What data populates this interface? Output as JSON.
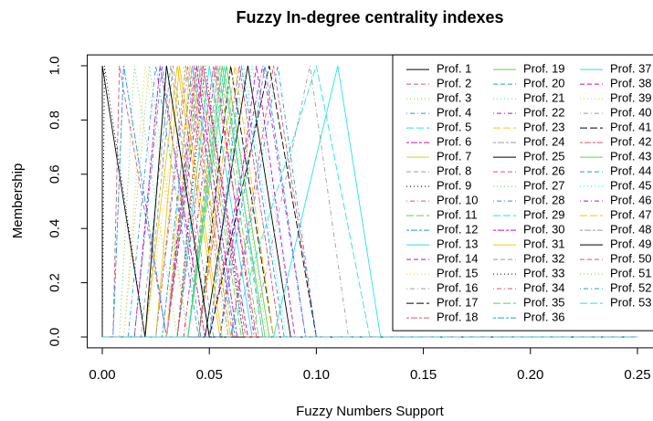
{
  "chart_data": {
    "type": "line",
    "title": "Fuzzy In-degree centrality indexes",
    "x_label": "Fuzzy Numbers Support",
    "y_label": "Membership",
    "xlim": [
      -0.007,
      0.26
    ],
    "ylim": [
      -0.04,
      1.04
    ],
    "xticks": [
      {
        "value": 0,
        "label": "0.00"
      },
      {
        "value": 0.05,
        "label": "0.05"
      },
      {
        "value": 0.1,
        "label": "0.10"
      },
      {
        "value": 0.15,
        "label": "0.15"
      },
      {
        "value": 0.2,
        "label": "0.20"
      },
      {
        "value": 0.25,
        "label": "0.25"
      }
    ],
    "yticks": [
      {
        "value": 0,
        "label": "0.0"
      },
      {
        "value": 0.2,
        "label": "0.2"
      },
      {
        "value": 0.4,
        "label": "0.4"
      },
      {
        "value": 0.6,
        "label": "0.6"
      },
      {
        "value": 0.8,
        "label": "0.8"
      },
      {
        "value": 1,
        "label": "1.0"
      }
    ],
    "legend": "top-right",
    "series": [
      {
        "name": "Prof. 1",
        "color": "#000000",
        "linetype": "solid",
        "x": [
          0,
          0,
          0,
          0.02,
          0.25
        ],
        "values": [
          0,
          0,
          1,
          0,
          0
        ]
      },
      {
        "name": "Prof. 2",
        "color": "#DF536B",
        "linetype": "dashed",
        "x": [
          0,
          0.005,
          0.008,
          0.03,
          0.25
        ],
        "values": [
          0,
          0,
          1,
          0,
          0
        ]
      },
      {
        "name": "Prof. 3",
        "color": "#61D04F",
        "linetype": "dotted",
        "x": [
          0,
          0.01,
          0.022,
          0.04,
          0.25
        ],
        "values": [
          0,
          0,
          1,
          0,
          0
        ]
      },
      {
        "name": "Prof. 4",
        "color": "#2297E6",
        "linetype": "dotdash",
        "x": [
          0,
          0.012,
          0.025,
          0.045,
          0.25
        ],
        "values": [
          0,
          0,
          1,
          0,
          0
        ]
      },
      {
        "name": "Prof. 5",
        "color": "#28E2E5",
        "linetype": "longdash",
        "x": [
          0,
          0.02,
          0.03,
          0.05,
          0.25
        ],
        "values": [
          0,
          0,
          1,
          0,
          0
        ]
      },
      {
        "name": "Prof. 6",
        "color": "#CD0BBC",
        "linetype": "twodash",
        "x": [
          0,
          0.015,
          0.027,
          0.048,
          0.25
        ],
        "values": [
          0,
          0,
          1,
          0,
          0
        ]
      },
      {
        "name": "Prof. 7",
        "color": "#F5C710",
        "linetype": "solid",
        "x": [
          0,
          0.02,
          0.035,
          0.055,
          0.25
        ],
        "values": [
          0,
          0,
          1,
          0,
          0
        ]
      },
      {
        "name": "Prof. 8",
        "color": "#9E9E9E",
        "linetype": "dashed",
        "x": [
          0,
          0.018,
          0.032,
          0.05,
          0.25
        ],
        "values": [
          0,
          0,
          1,
          0,
          0
        ]
      },
      {
        "name": "Prof. 9",
        "color": "#000000",
        "linetype": "dotted",
        "x": [
          0,
          0,
          0.001,
          0.02,
          0.25
        ],
        "values": [
          0,
          0,
          1,
          0,
          0
        ]
      },
      {
        "name": "Prof. 10",
        "color": "#DF536B",
        "linetype": "dotdash",
        "x": [
          0,
          0.025,
          0.04,
          0.06,
          0.25
        ],
        "values": [
          0,
          0,
          1,
          0,
          0
        ]
      },
      {
        "name": "Prof. 11",
        "color": "#61D04F",
        "linetype": "longdash",
        "x": [
          0,
          0.03,
          0.045,
          0.065,
          0.25
        ],
        "values": [
          0,
          0,
          1,
          0,
          0
        ]
      },
      {
        "name": "Prof. 12",
        "color": "#2297E6",
        "linetype": "twodash",
        "x": [
          0,
          0.028,
          0.042,
          0.062,
          0.25
        ],
        "values": [
          0,
          0,
          1,
          0,
          0
        ]
      },
      {
        "name": "Prof. 13",
        "color": "#28E2E5",
        "linetype": "solid",
        "x": [
          0,
          0.035,
          0.05,
          0.07,
          0.25
        ],
        "values": [
          0,
          0,
          1,
          0,
          0
        ]
      },
      {
        "name": "Prof. 14",
        "color": "#CD0BBC",
        "linetype": "dashed",
        "x": [
          0,
          0.03,
          0.047,
          0.068,
          0.25
        ],
        "values": [
          0,
          0,
          1,
          0,
          0
        ]
      },
      {
        "name": "Prof. 15",
        "color": "#F5C710",
        "linetype": "dotted",
        "x": [
          0,
          0.02,
          0.038,
          0.058,
          0.25
        ],
        "values": [
          0,
          0,
          1,
          0,
          0
        ]
      },
      {
        "name": "Prof. 16",
        "color": "#9E9E9E",
        "linetype": "dotdash",
        "x": [
          0,
          0.04,
          0.055,
          0.075,
          0.25
        ],
        "values": [
          0,
          0,
          1,
          0,
          0
        ]
      },
      {
        "name": "Prof. 17",
        "color": "#000000",
        "linetype": "longdash",
        "x": [
          0,
          0.045,
          0.06,
          0.08,
          0.25
        ],
        "values": [
          0,
          0,
          1,
          0,
          0
        ]
      },
      {
        "name": "Prof. 18",
        "color": "#DF536B",
        "linetype": "twodash",
        "x": [
          0,
          0.035,
          0.052,
          0.072,
          0.25
        ],
        "values": [
          0,
          0,
          1,
          0,
          0
        ]
      },
      {
        "name": "Prof. 19",
        "color": "#61D04F",
        "linetype": "solid",
        "x": [
          0,
          0.04,
          0.058,
          0.078,
          0.25
        ],
        "values": [
          0,
          0,
          1,
          0,
          0
        ]
      },
      {
        "name": "Prof. 20",
        "color": "#2297E6",
        "linetype": "dashed",
        "x": [
          0,
          0.05,
          0.065,
          0.085,
          0.25
        ],
        "values": [
          0,
          0,
          1,
          0,
          0
        ]
      },
      {
        "name": "Prof. 21",
        "color": "#28E2E5",
        "linetype": "dotted",
        "x": [
          0,
          0.055,
          0.07,
          0.09,
          0.25
        ],
        "values": [
          0,
          0,
          1,
          0,
          0
        ]
      },
      {
        "name": "Prof. 22",
        "color": "#CD0BBC",
        "linetype": "dotdash",
        "x": [
          0,
          0.05,
          0.075,
          0.095,
          0.25
        ],
        "values": [
          0,
          0,
          1,
          0,
          0
        ]
      },
      {
        "name": "Prof. 23",
        "color": "#F5C710",
        "linetype": "longdash",
        "x": [
          0,
          0.045,
          0.062,
          0.08,
          0.25
        ],
        "values": [
          0,
          0,
          1,
          0,
          0
        ]
      },
      {
        "name": "Prof. 24",
        "color": "#9E9E9E",
        "linetype": "twodash",
        "x": [
          0,
          0.03,
          0.046,
          0.066,
          0.25
        ],
        "values": [
          0,
          0,
          1,
          0,
          0
        ]
      },
      {
        "name": "Prof. 25",
        "color": "#000000",
        "linetype": "solid",
        "x": [
          0,
          0.048,
          0.068,
          0.088,
          0.25
        ],
        "values": [
          0,
          0,
          1,
          0,
          0
        ]
      },
      {
        "name": "Prof. 26",
        "color": "#DF536B",
        "linetype": "dashed",
        "x": [
          0,
          0.06,
          0.08,
          0.1,
          0.25
        ],
        "values": [
          0,
          0,
          1,
          0,
          0
        ]
      },
      {
        "name": "Prof. 27",
        "color": "#61D04F",
        "linetype": "dotted",
        "x": [
          0,
          0.008,
          0.015,
          0.035,
          0.25
        ],
        "values": [
          0,
          0,
          1,
          0,
          0
        ]
      },
      {
        "name": "Prof. 28",
        "color": "#2297E6",
        "linetype": "dotdash",
        "x": [
          0,
          0.015,
          0.028,
          0.046,
          0.25
        ],
        "values": [
          0,
          0,
          1,
          0,
          0
        ]
      },
      {
        "name": "Prof. 29",
        "color": "#28E2E5",
        "linetype": "longdash",
        "x": [
          0,
          0.06,
          0.1,
          0.125,
          0.25
        ],
        "values": [
          0,
          0,
          1,
          0,
          0
        ]
      },
      {
        "name": "Prof. 30",
        "color": "#CD0BBC",
        "linetype": "twodash",
        "x": [
          0,
          0.03,
          0.044,
          0.063,
          0.25
        ],
        "values": [
          0,
          0,
          1,
          0,
          0
        ]
      },
      {
        "name": "Prof. 31",
        "color": "#F5C710",
        "linetype": "solid",
        "x": [
          0,
          0.025,
          0.036,
          0.056,
          0.25
        ],
        "values": [
          0,
          0,
          1,
          0,
          0
        ]
      },
      {
        "name": "Prof. 32",
        "color": "#9E9E9E",
        "linetype": "dashed",
        "x": [
          0,
          0.02,
          0.033,
          0.052,
          0.25
        ],
        "values": [
          0,
          0,
          1,
          0,
          0
        ]
      },
      {
        "name": "Prof. 33",
        "color": "#000000",
        "linetype": "dotted",
        "x": [
          0,
          0.035,
          0.048,
          0.066,
          0.25
        ],
        "values": [
          0,
          0,
          1,
          0,
          0
        ]
      },
      {
        "name": "Prof. 34",
        "color": "#DF536B",
        "linetype": "dotdash",
        "x": [
          0,
          0.03,
          0.043,
          0.061,
          0.25
        ],
        "values": [
          0,
          0,
          1,
          0,
          0
        ]
      },
      {
        "name": "Prof. 35",
        "color": "#61D04F",
        "linetype": "longdash",
        "x": [
          0,
          0.04,
          0.054,
          0.073,
          0.25
        ],
        "values": [
          0,
          0,
          1,
          0,
          0
        ]
      },
      {
        "name": "Prof. 36",
        "color": "#2297E6",
        "linetype": "twodash",
        "x": [
          0,
          0.005,
          0.01,
          0.03,
          0.25
        ],
        "values": [
          0,
          0,
          1,
          0,
          0
        ]
      },
      {
        "name": "Prof. 37",
        "color": "#28E2E5",
        "linetype": "solid",
        "x": [
          0,
          0.08,
          0.11,
          0.13,
          0.25
        ],
        "values": [
          0,
          0,
          1,
          0,
          0
        ]
      },
      {
        "name": "Prof. 38",
        "color": "#CD0BBC",
        "linetype": "dashed",
        "x": [
          0,
          0.055,
          0.072,
          0.09,
          0.25
        ],
        "values": [
          0,
          0,
          1,
          0,
          0
        ]
      },
      {
        "name": "Prof. 39",
        "color": "#F5C710",
        "linetype": "dotted",
        "x": [
          0,
          0.01,
          0.02,
          0.04,
          0.25
        ],
        "values": [
          0,
          0,
          1,
          0,
          0
        ]
      },
      {
        "name": "Prof. 40",
        "color": "#9E9E9E",
        "linetype": "dotdash",
        "x": [
          0,
          0.07,
          0.097,
          0.115,
          0.25
        ],
        "values": [
          0,
          0,
          1,
          0,
          0
        ]
      },
      {
        "name": "Prof. 41",
        "color": "#000000",
        "linetype": "longdash",
        "x": [
          0,
          0.05,
          0.078,
          0.1,
          0.25
        ],
        "values": [
          0,
          0,
          1,
          0,
          0
        ]
      },
      {
        "name": "Prof. 42",
        "color": "#DF536B",
        "linetype": "twodash",
        "x": [
          0,
          0.045,
          0.064,
          0.083,
          0.25
        ],
        "values": [
          0,
          0,
          1,
          0,
          0
        ]
      },
      {
        "name": "Prof. 43",
        "color": "#61D04F",
        "linetype": "solid",
        "x": [
          0,
          0.04,
          0.056,
          0.076,
          0.25
        ],
        "values": [
          0,
          0,
          1,
          0,
          0
        ]
      },
      {
        "name": "Prof. 44",
        "color": "#2297E6",
        "linetype": "dashed",
        "x": [
          0,
          0.055,
          0.076,
          0.095,
          0.25
        ],
        "values": [
          0,
          0,
          1,
          0,
          0
        ]
      },
      {
        "name": "Prof. 45",
        "color": "#28E2E5",
        "linetype": "dotted",
        "x": [
          0,
          0.05,
          0.066,
          0.086,
          0.25
        ],
        "values": [
          0,
          0,
          1,
          0,
          0
        ]
      },
      {
        "name": "Prof. 46",
        "color": "#CD0BBC",
        "linetype": "dotdash",
        "x": [
          0,
          0.038,
          0.053,
          0.071,
          0.25
        ],
        "values": [
          0,
          0,
          1,
          0,
          0
        ]
      },
      {
        "name": "Prof. 47",
        "color": "#F5C710",
        "linetype": "longdash",
        "x": [
          0,
          0.03,
          0.041,
          0.06,
          0.25
        ],
        "values": [
          0,
          0,
          1,
          0,
          0
        ]
      },
      {
        "name": "Prof. 48",
        "color": "#9E9E9E",
        "linetype": "twodash",
        "x": [
          0,
          0.025,
          0.039,
          0.059,
          0.25
        ],
        "values": [
          0,
          0,
          1,
          0,
          0
        ]
      },
      {
        "name": "Prof. 49",
        "color": "#000000",
        "linetype": "solid",
        "x": [
          0,
          0.02,
          0.03,
          0.05,
          0.25
        ],
        "values": [
          0,
          0,
          1,
          0,
          0
        ]
      },
      {
        "name": "Prof. 50",
        "color": "#DF536B",
        "linetype": "dashed",
        "x": [
          0,
          0.035,
          0.047,
          0.067,
          0.25
        ],
        "values": [
          0,
          0,
          1,
          0,
          0
        ]
      },
      {
        "name": "Prof. 51",
        "color": "#61D04F",
        "linetype": "dotted",
        "x": [
          0,
          0.045,
          0.058,
          0.077,
          0.25
        ],
        "values": [
          0,
          0,
          1,
          0,
          0
        ]
      },
      {
        "name": "Prof. 52",
        "color": "#2297E6",
        "linetype": "dotdash",
        "x": [
          0,
          0.06,
          0.082,
          0.1,
          0.25
        ],
        "values": [
          0,
          0,
          1,
          0,
          0
        ]
      },
      {
        "name": "Prof. 53",
        "color": "#28E2E5",
        "linetype": "longdash",
        "x": [
          0,
          0.04,
          0.057,
          0.075,
          0.25
        ],
        "values": [
          0,
          0,
          1,
          0,
          0
        ]
      }
    ]
  }
}
